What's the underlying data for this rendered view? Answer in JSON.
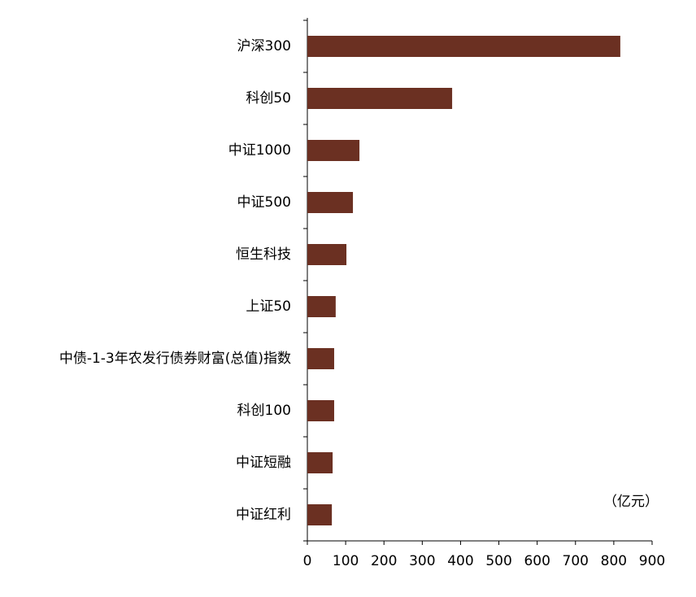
{
  "chart_data": {
    "type": "barh",
    "unit_label": "（亿元）",
    "categories": [
      "沪深300",
      "科创50",
      "中证1000",
      "中证500",
      "恒生科技",
      "上证50",
      "中债-1-3年农发行债券财富(总值)指数",
      "科创100",
      "中证短融",
      "中证红利"
    ],
    "values": [
      817,
      378,
      136,
      119,
      102,
      74,
      70,
      70,
      66,
      64
    ],
    "color": "#6b3022",
    "xlim": [
      0,
      900
    ],
    "xticks": [
      0,
      100,
      200,
      300,
      400,
      500,
      600,
      700,
      800,
      900
    ],
    "grid": false
  }
}
